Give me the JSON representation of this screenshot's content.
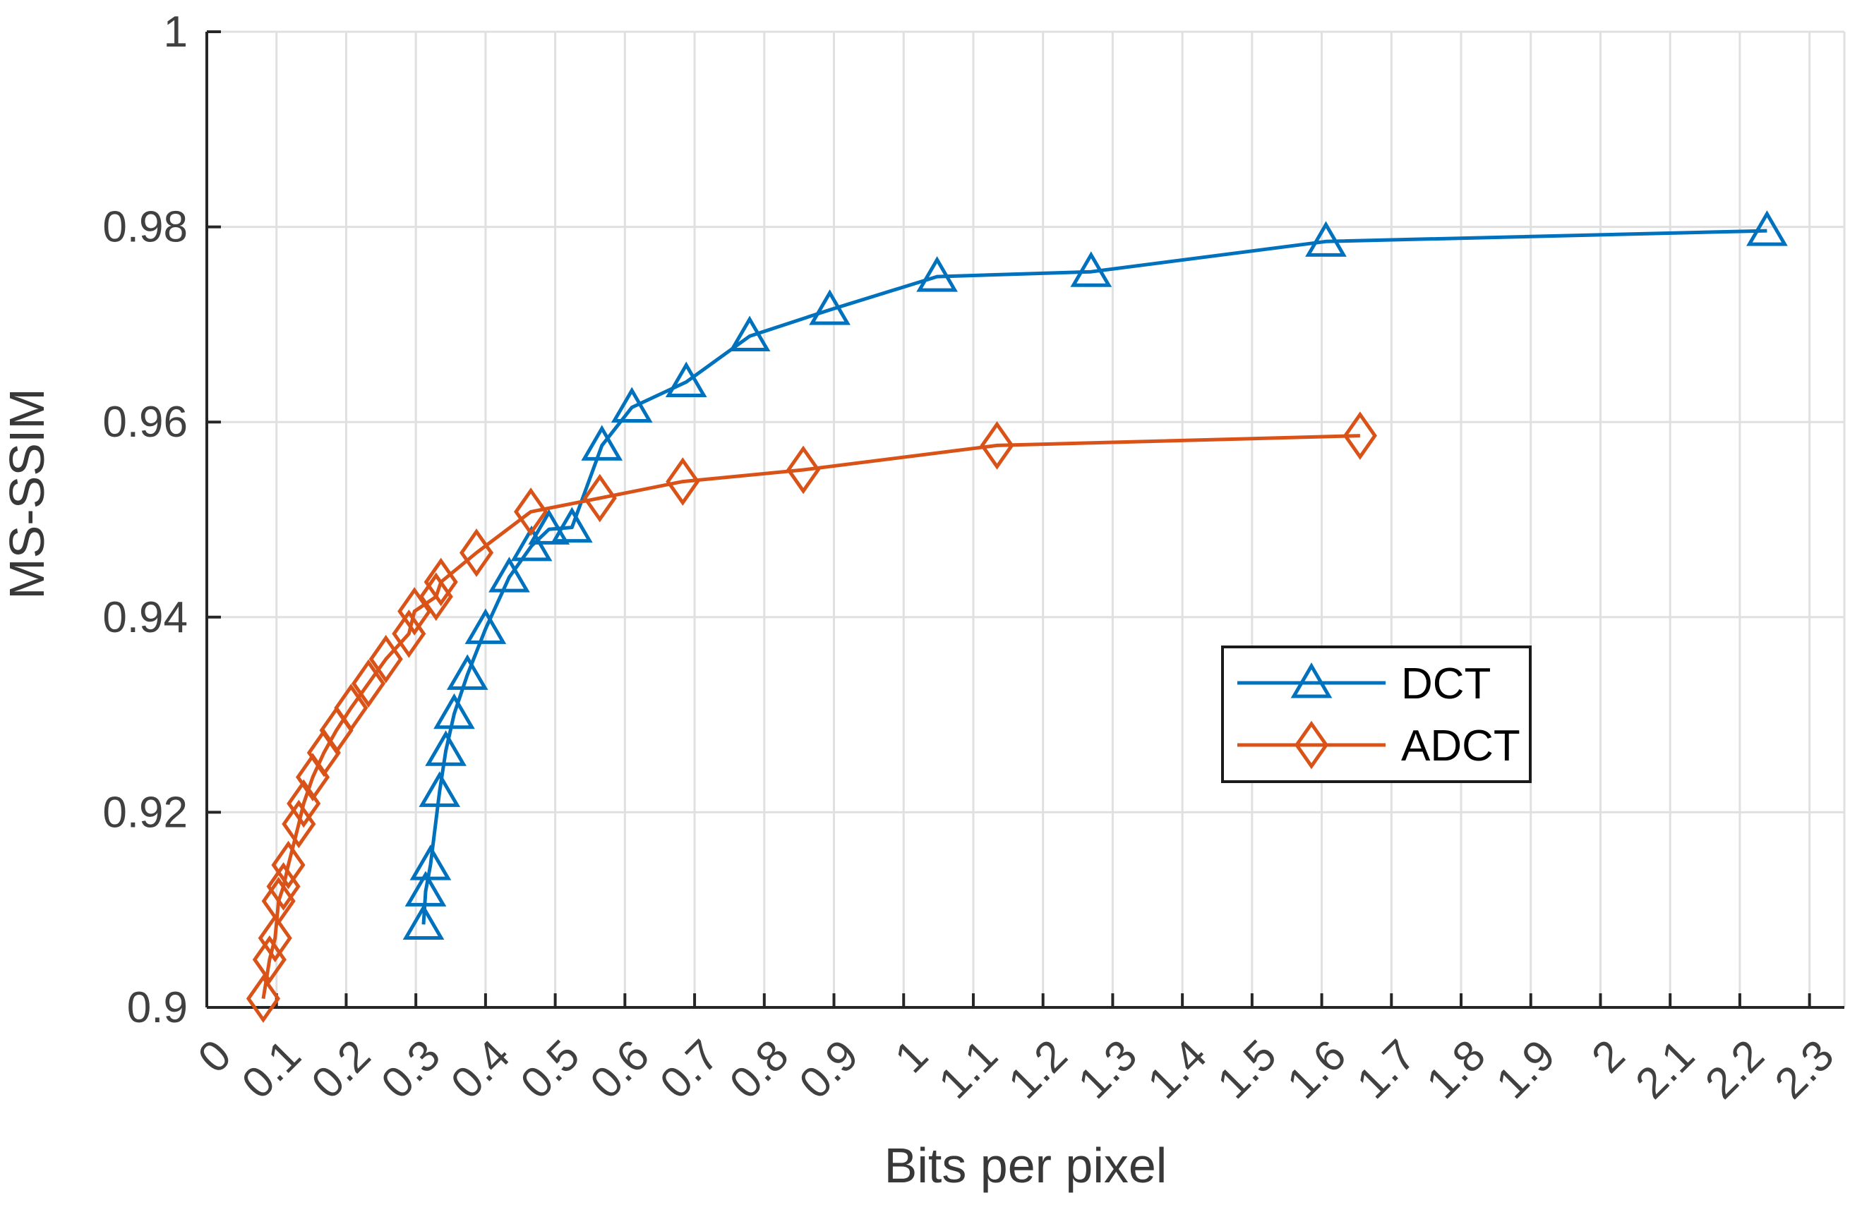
{
  "figure": {
    "background": "#ffffff",
    "axis_color": "#262626",
    "grid_color": "#e0e0e0",
    "tick_label_color": "#404040",
    "label_color": "#383838"
  },
  "legend": {
    "position": "inside-right",
    "background": "#ffffff",
    "border_color": "#1a1a1a",
    "text_color": "#000000"
  },
  "chart_data": {
    "type": "line",
    "title": "",
    "xlabel": "Bits per pixel",
    "ylabel": "MS-SSIM",
    "xlim": [
      0,
      2.35
    ],
    "ylim": [
      0.9,
      1.0
    ],
    "grid": true,
    "xtick_labels": [
      "0",
      "0.1",
      "0.2",
      "0.3",
      "0.4",
      "0.5",
      "0.6",
      "0.7",
      "0.8",
      "0.9",
      "1",
      "1.1",
      "1.2",
      "1.3",
      "1.4",
      "1.5",
      "1.6",
      "1.7",
      "1.8",
      "1.9",
      "2",
      "2.1",
      "2.2",
      "2.3"
    ],
    "ytick_labels": [
      "0.9",
      "0.92",
      "0.94",
      "0.96",
      "0.98",
      "1"
    ],
    "legend_entries": [
      "DCT",
      "ADCT"
    ],
    "series": [
      {
        "name": "DCT",
        "color": "#0072BD",
        "marker": "triangle",
        "points": [
          [
            0.311,
            0.9085
          ],
          [
            0.314,
            0.9119
          ],
          [
            0.321,
            0.9146
          ],
          [
            0.334,
            0.9221
          ],
          [
            0.343,
            0.9263
          ],
          [
            0.355,
            0.9301
          ],
          [
            0.374,
            0.9341
          ],
          [
            0.4,
            0.9388
          ],
          [
            0.434,
            0.9441
          ],
          [
            0.466,
            0.9473
          ],
          [
            0.491,
            0.949
          ],
          [
            0.524,
            0.9492
          ],
          [
            0.567,
            0.9576
          ],
          [
            0.61,
            0.9615
          ],
          [
            0.688,
            0.9641
          ],
          [
            0.779,
            0.9688
          ],
          [
            0.894,
            0.9715
          ],
          [
            1.048,
            0.9749
          ],
          [
            1.269,
            0.9754
          ],
          [
            1.606,
            0.9785
          ],
          [
            2.239,
            0.9796
          ]
        ]
      },
      {
        "name": "ADCT",
        "color": "#D95319",
        "marker": "diamond",
        "points": [
          [
            0.081,
            0.9009
          ],
          [
            0.09,
            0.9049
          ],
          [
            0.098,
            0.9071
          ],
          [
            0.103,
            0.9109
          ],
          [
            0.11,
            0.9124
          ],
          [
            0.117,
            0.9146
          ],
          [
            0.132,
            0.9188
          ],
          [
            0.139,
            0.9209
          ],
          [
            0.152,
            0.9236
          ],
          [
            0.168,
            0.9261
          ],
          [
            0.186,
            0.9284
          ],
          [
            0.207,
            0.9307
          ],
          [
            0.232,
            0.9332
          ],
          [
            0.257,
            0.9357
          ],
          [
            0.29,
            0.9383
          ],
          [
            0.298,
            0.9406
          ],
          [
            0.329,
            0.9421
          ],
          [
            0.336,
            0.9436
          ],
          [
            0.387,
            0.9466
          ],
          [
            0.465,
            0.9508
          ],
          [
            0.564,
            0.9522
          ],
          [
            0.683,
            0.9539
          ],
          [
            0.856,
            0.9551
          ],
          [
            1.134,
            0.9576
          ],
          [
            1.655,
            0.9586
          ]
        ]
      }
    ]
  }
}
